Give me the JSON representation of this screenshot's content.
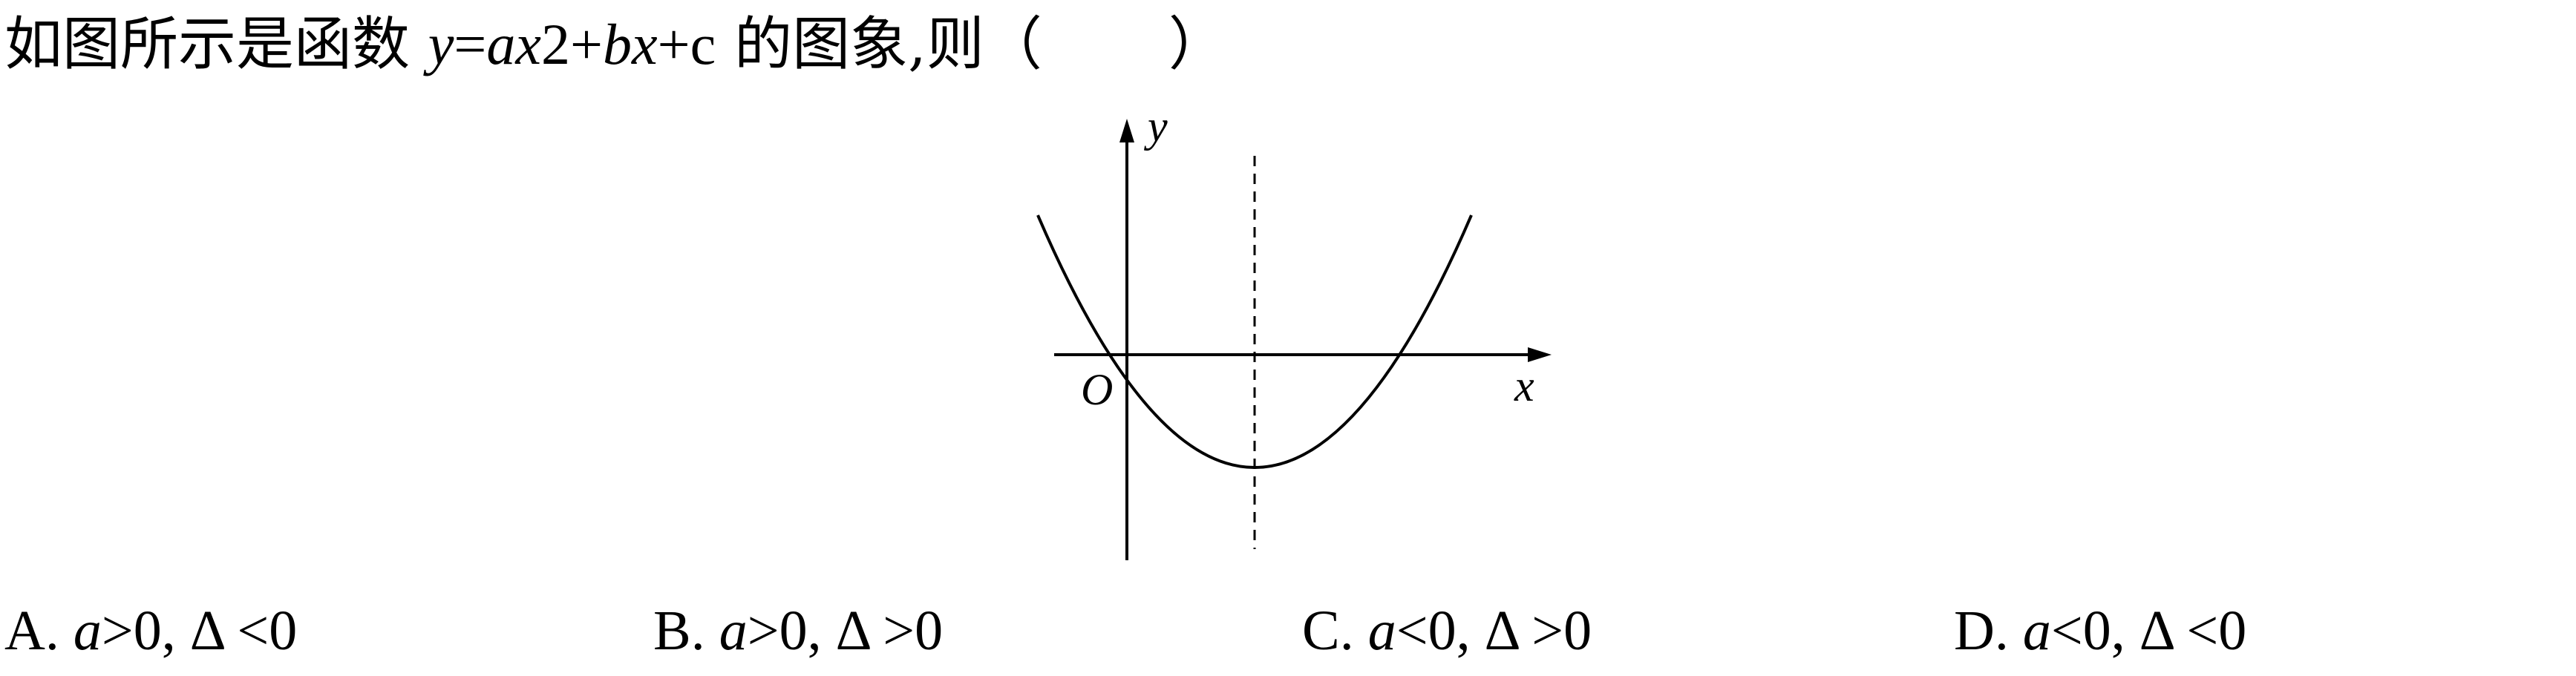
{
  "question": {
    "prefix": "如图所示是函数 ",
    "y": "y",
    "eq": "=",
    "a": "a",
    "x1": "x",
    "sq": "2+",
    "b": "b",
    "x2": "x",
    "plus_c": "+c",
    "suffix": " 的图象,则（",
    "close": "）"
  },
  "figure": {
    "y_label": "y",
    "x_label": "x",
    "origin_label": "O",
    "axis_color": "#000000",
    "curve_color": "#000000"
  },
  "options": [
    {
      "letter": "A. ",
      "var": "a",
      "rest": ">0, Δ <0"
    },
    {
      "letter": "B. ",
      "var": "a",
      "rest": ">0, Δ >0"
    },
    {
      "letter": "C. ",
      "var": "a",
      "rest": "<0, Δ >0"
    },
    {
      "letter": "D. ",
      "var": "a",
      "rest": "<0, Δ <0"
    }
  ]
}
